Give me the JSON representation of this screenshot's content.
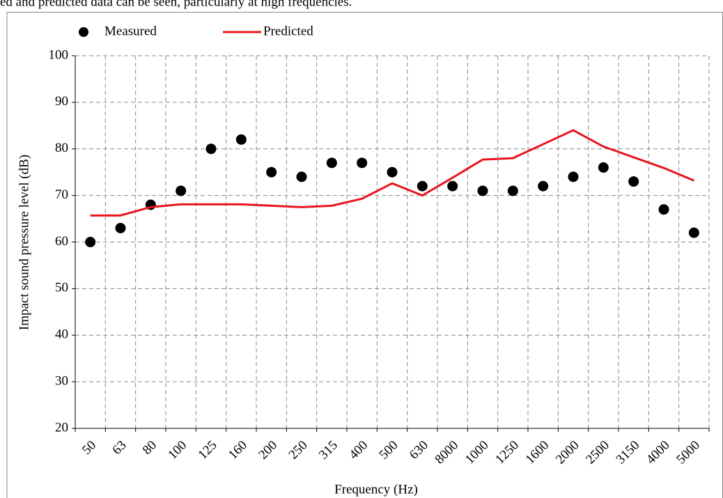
{
  "caption": "ed and predicted data can be seen, particularly at high frequencies.",
  "chart_data": {
    "type": "line",
    "xlabel": "Frequency (Hz)",
    "ylabel": "Impact sound pressure level (dB)",
    "categories": [
      "50",
      "63",
      "80",
      "100",
      "125",
      "160",
      "200",
      "250",
      "315",
      "400",
      "500",
      "630",
      "8000",
      "1000",
      "1250",
      "1600",
      "2000",
      "2500",
      "3150",
      "4000",
      "5000"
    ],
    "series": [
      {
        "name": "Measured",
        "color": "#000000",
        "style": "markers",
        "values": [
          60,
          63,
          68,
          71,
          80,
          82,
          75,
          74,
          77,
          77,
          75,
          72,
          72,
          71,
          71,
          72,
          74,
          76,
          73,
          67,
          62
        ]
      },
      {
        "name": "Predicted",
        "color": "#e8141b",
        "style": "line",
        "values": [
          65.7,
          65.7,
          67.5,
          68.1,
          68.1,
          68.1,
          67.8,
          67.5,
          67.8,
          69.3,
          72.6,
          70.0,
          73.8,
          77.7,
          78.0,
          81.0,
          84.0,
          80.5,
          78.2,
          75.9,
          73.2
        ]
      }
    ],
    "ylim": [
      20,
      100
    ],
    "yticks": [
      20,
      30,
      40,
      50,
      60,
      70,
      80,
      90,
      100
    ],
    "grid": true,
    "legend": "top"
  }
}
